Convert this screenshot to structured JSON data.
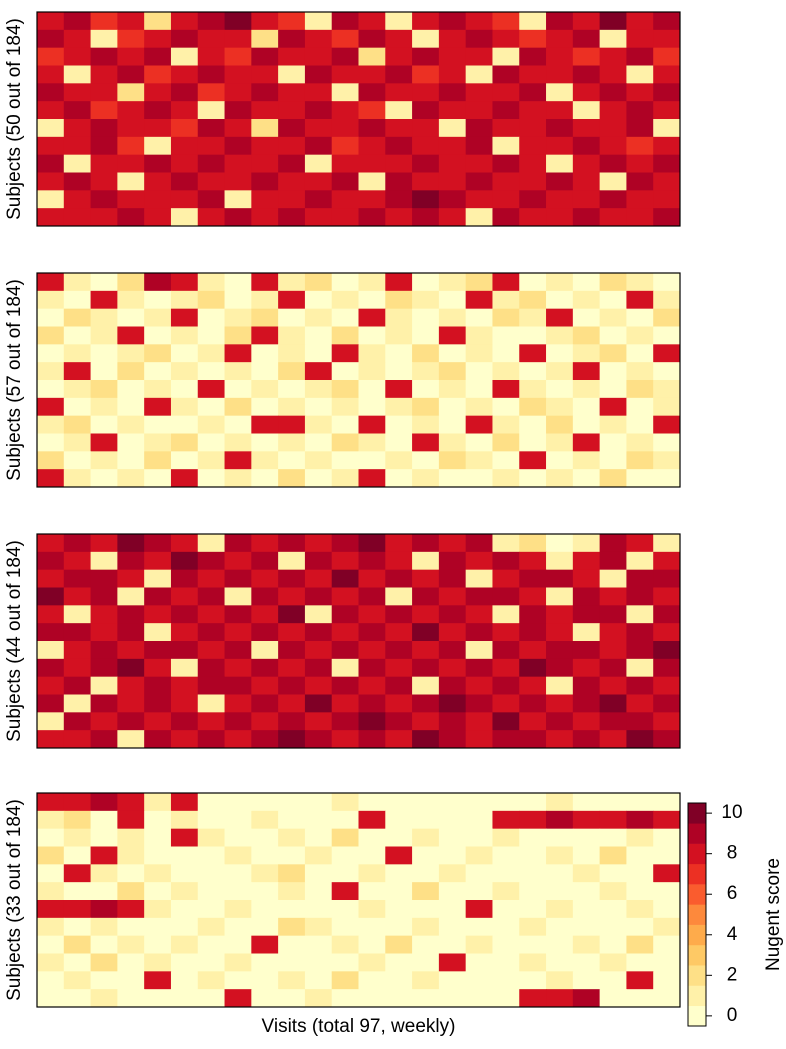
{
  "chart_data": [
    {
      "type": "heatmap",
      "ylabel": "Subjects (50 out of 184)",
      "values": [
        [
          8,
          9,
          7,
          8,
          2,
          8,
          9,
          10,
          8,
          7,
          1,
          9,
          8,
          1,
          8,
          9,
          8,
          7,
          1,
          9,
          8,
          10,
          8,
          9
        ],
        [
          9,
          8,
          1,
          7,
          8,
          9,
          8,
          8,
          2,
          9,
          8,
          7,
          9,
          8,
          1,
          8,
          9,
          8,
          7,
          8,
          9,
          1,
          8,
          8
        ],
        [
          7,
          8,
          9,
          8,
          9,
          1,
          8,
          7,
          9,
          8,
          8,
          9,
          2,
          8,
          9,
          8,
          8,
          1,
          9,
          8,
          7,
          8,
          9,
          7
        ],
        [
          8,
          1,
          8,
          9,
          7,
          8,
          9,
          8,
          8,
          1,
          9,
          8,
          8,
          9,
          7,
          8,
          1,
          9,
          8,
          8,
          9,
          8,
          1,
          8
        ],
        [
          9,
          8,
          8,
          2,
          8,
          9,
          7,
          8,
          9,
          8,
          8,
          1,
          9,
          8,
          8,
          9,
          8,
          8,
          9,
          1,
          8,
          9,
          8,
          9
        ],
        [
          8,
          9,
          7,
          8,
          9,
          8,
          1,
          9,
          8,
          8,
          9,
          8,
          7,
          1,
          9,
          8,
          8,
          9,
          8,
          8,
          1,
          8,
          9,
          8
        ],
        [
          1,
          8,
          9,
          8,
          8,
          7,
          9,
          8,
          2,
          9,
          8,
          8,
          9,
          8,
          8,
          1,
          9,
          8,
          8,
          9,
          8,
          8,
          9,
          1
        ],
        [
          8,
          8,
          9,
          7,
          1,
          8,
          8,
          9,
          8,
          8,
          9,
          7,
          8,
          9,
          8,
          8,
          9,
          1,
          8,
          8,
          9,
          8,
          7,
          8
        ],
        [
          9,
          1,
          8,
          8,
          9,
          8,
          9,
          8,
          8,
          9,
          1,
          8,
          8,
          8,
          9,
          8,
          8,
          9,
          8,
          1,
          8,
          9,
          8,
          9
        ],
        [
          8,
          9,
          8,
          1,
          8,
          9,
          8,
          8,
          9,
          8,
          8,
          9,
          1,
          9,
          8,
          8,
          9,
          8,
          8,
          9,
          8,
          1,
          9,
          8
        ],
        [
          1,
          8,
          9,
          8,
          8,
          8,
          9,
          1,
          8,
          8,
          9,
          8,
          8,
          9,
          10,
          9,
          8,
          8,
          9,
          8,
          8,
          9,
          8,
          8
        ],
        [
          8,
          8,
          8,
          9,
          8,
          1,
          8,
          9,
          8,
          9,
          8,
          8,
          9,
          8,
          9,
          8,
          1,
          9,
          8,
          8,
          9,
          8,
          8,
          9
        ]
      ]
    },
    {
      "type": "heatmap",
      "ylabel": "Subjects (57 out of 184)",
      "values": [
        [
          8,
          1,
          0,
          2,
          9,
          8,
          1,
          0,
          8,
          1,
          2,
          0,
          1,
          8,
          0,
          1,
          2,
          8,
          0,
          1,
          0,
          2,
          1,
          0
        ],
        [
          1,
          0,
          8,
          1,
          0,
          1,
          2,
          0,
          1,
          8,
          0,
          1,
          0,
          2,
          1,
          0,
          8,
          1,
          2,
          0,
          1,
          0,
          8,
          1
        ],
        [
          0,
          2,
          1,
          0,
          1,
          8,
          0,
          1,
          2,
          0,
          1,
          0,
          8,
          1,
          0,
          1,
          0,
          2,
          1,
          8,
          0,
          1,
          0,
          2
        ],
        [
          2,
          0,
          1,
          8,
          0,
          1,
          0,
          2,
          8,
          1,
          0,
          2,
          0,
          1,
          0,
          8,
          1,
          0,
          0,
          1,
          2,
          0,
          1,
          0
        ],
        [
          0,
          1,
          0,
          1,
          2,
          0,
          1,
          8,
          0,
          1,
          0,
          8,
          1,
          0,
          2,
          0,
          1,
          0,
          8,
          0,
          1,
          2,
          0,
          8
        ],
        [
          1,
          8,
          0,
          2,
          0,
          1,
          0,
          1,
          0,
          2,
          8,
          0,
          1,
          0,
          1,
          2,
          0,
          1,
          0,
          1,
          8,
          0,
          1,
          0
        ],
        [
          0,
          1,
          2,
          0,
          1,
          0,
          8,
          0,
          1,
          0,
          1,
          2,
          0,
          8,
          0,
          1,
          0,
          8,
          1,
          0,
          1,
          0,
          2,
          1
        ],
        [
          8,
          0,
          1,
          0,
          8,
          1,
          0,
          2,
          0,
          1,
          0,
          1,
          0,
          1,
          2,
          0,
          1,
          0,
          2,
          1,
          0,
          8,
          0,
          1
        ],
        [
          1,
          2,
          0,
          1,
          0,
          0,
          1,
          0,
          8,
          8,
          1,
          0,
          8,
          0,
          1,
          0,
          8,
          1,
          0,
          2,
          0,
          1,
          0,
          8
        ],
        [
          0,
          1,
          8,
          0,
          1,
          2,
          0,
          1,
          0,
          1,
          0,
          2,
          1,
          0,
          8,
          1,
          0,
          2,
          0,
          1,
          8,
          0,
          1,
          0
        ],
        [
          2,
          0,
          1,
          0,
          2,
          0,
          1,
          8,
          1,
          0,
          1,
          0,
          0,
          1,
          0,
          2,
          1,
          0,
          8,
          0,
          1,
          0,
          2,
          1
        ],
        [
          8,
          1,
          0,
          1,
          0,
          8,
          0,
          1,
          0,
          2,
          0,
          1,
          8,
          0,
          1,
          0,
          0,
          1,
          0,
          1,
          0,
          2,
          0,
          0
        ]
      ]
    },
    {
      "type": "heatmap",
      "ylabel": "Subjects (44 out of 184)",
      "values": [
        [
          8,
          9,
          8,
          10,
          9,
          8,
          1,
          9,
          8,
          9,
          8,
          9,
          10,
          8,
          9,
          8,
          9,
          1,
          2,
          0,
          1,
          9,
          8,
          1
        ],
        [
          9,
          8,
          1,
          9,
          8,
          10,
          9,
          8,
          9,
          1,
          9,
          8,
          9,
          8,
          1,
          9,
          8,
          9,
          8,
          1,
          8,
          9,
          1,
          8
        ],
        [
          8,
          9,
          9,
          8,
          1,
          9,
          8,
          9,
          8,
          9,
          8,
          10,
          8,
          9,
          8,
          9,
          1,
          8,
          9,
          9,
          8,
          1,
          9,
          9
        ],
        [
          10,
          8,
          9,
          1,
          9,
          8,
          9,
          1,
          9,
          8,
          9,
          8,
          9,
          1,
          9,
          8,
          9,
          9,
          8,
          1,
          9,
          8,
          9,
          8
        ],
        [
          8,
          1,
          8,
          9,
          8,
          9,
          8,
          9,
          8,
          10,
          1,
          9,
          8,
          9,
          8,
          9,
          8,
          1,
          9,
          8,
          9,
          9,
          1,
          9
        ],
        [
          9,
          9,
          8,
          9,
          1,
          8,
          9,
          8,
          9,
          8,
          9,
          8,
          9,
          8,
          10,
          8,
          9,
          8,
          9,
          8,
          1,
          8,
          9,
          8
        ],
        [
          1,
          8,
          9,
          8,
          9,
          9,
          8,
          9,
          1,
          9,
          8,
          9,
          8,
          9,
          8,
          9,
          1,
          9,
          8,
          9,
          9,
          8,
          9,
          10
        ],
        [
          9,
          8,
          9,
          10,
          8,
          1,
          9,
          8,
          9,
          8,
          9,
          1,
          9,
          8,
          9,
          8,
          9,
          8,
          10,
          9,
          8,
          9,
          1,
          9
        ],
        [
          8,
          9,
          1,
          8,
          9,
          8,
          9,
          9,
          8,
          9,
          8,
          9,
          8,
          9,
          1,
          9,
          8,
          9,
          8,
          1,
          9,
          8,
          9,
          8
        ],
        [
          9,
          1,
          9,
          8,
          9,
          8,
          1,
          8,
          9,
          8,
          10,
          8,
          9,
          8,
          9,
          10,
          9,
          8,
          9,
          8,
          9,
          10,
          8,
          9
        ],
        [
          1,
          9,
          8,
          9,
          8,
          9,
          8,
          9,
          8,
          9,
          8,
          9,
          10,
          9,
          8,
          9,
          8,
          10,
          8,
          9,
          8,
          9,
          9,
          8
        ],
        [
          8,
          8,
          9,
          1,
          9,
          8,
          9,
          8,
          9,
          10,
          9,
          8,
          9,
          8,
          10,
          9,
          8,
          9,
          9,
          8,
          9,
          8,
          10,
          9
        ]
      ]
    },
    {
      "type": "heatmap",
      "ylabel": "Subjects (33 out of 184)",
      "xlabel": "Visits (total 97, weekly)",
      "values": [
        [
          8,
          8,
          9,
          8,
          1,
          8,
          0,
          0,
          0,
          0,
          0,
          1,
          0,
          0,
          0,
          0,
          0,
          0,
          0,
          1,
          0,
          0,
          0,
          0
        ],
        [
          1,
          2,
          0,
          8,
          0,
          1,
          0,
          0,
          1,
          0,
          0,
          0,
          8,
          0,
          0,
          0,
          0,
          8,
          8,
          9,
          8,
          8,
          9,
          8
        ],
        [
          0,
          1,
          0,
          1,
          0,
          8,
          1,
          0,
          0,
          1,
          0,
          2,
          0,
          0,
          1,
          0,
          0,
          1,
          0,
          0,
          0,
          0,
          1,
          0
        ],
        [
          2,
          0,
          8,
          1,
          0,
          0,
          0,
          1,
          0,
          0,
          1,
          0,
          0,
          8,
          0,
          0,
          1,
          0,
          0,
          1,
          0,
          2,
          0,
          0
        ],
        [
          0,
          8,
          1,
          0,
          1,
          0,
          0,
          0,
          1,
          2,
          0,
          0,
          1,
          0,
          0,
          1,
          0,
          0,
          0,
          0,
          1,
          0,
          0,
          8
        ],
        [
          1,
          0,
          0,
          2,
          0,
          1,
          0,
          0,
          0,
          1,
          0,
          8,
          0,
          0,
          2,
          0,
          0,
          1,
          0,
          0,
          0,
          1,
          0,
          0
        ],
        [
          8,
          8,
          9,
          8,
          1,
          0,
          0,
          1,
          0,
          0,
          0,
          0,
          1,
          0,
          0,
          0,
          8,
          0,
          0,
          1,
          0,
          0,
          1,
          0
        ],
        [
          1,
          0,
          1,
          0,
          0,
          0,
          1,
          0,
          0,
          2,
          1,
          0,
          0,
          0,
          1,
          0,
          0,
          0,
          1,
          0,
          0,
          0,
          0,
          1
        ],
        [
          0,
          2,
          0,
          1,
          0,
          1,
          0,
          0,
          8,
          0,
          0,
          1,
          0,
          2,
          0,
          0,
          1,
          0,
          0,
          0,
          1,
          0,
          2,
          0
        ],
        [
          1,
          0,
          2,
          0,
          1,
          0,
          0,
          1,
          0,
          0,
          0,
          0,
          1,
          0,
          0,
          8,
          0,
          0,
          1,
          0,
          0,
          1,
          0,
          0
        ],
        [
          0,
          1,
          0,
          0,
          8,
          0,
          1,
          0,
          0,
          1,
          0,
          2,
          0,
          0,
          1,
          0,
          0,
          0,
          0,
          1,
          0,
          0,
          8,
          0
        ],
        [
          0,
          0,
          1,
          0,
          0,
          0,
          0,
          8,
          0,
          0,
          1,
          0,
          0,
          0,
          0,
          0,
          0,
          0,
          8,
          8,
          9,
          0,
          0,
          0
        ]
      ],
      "colorbar": {
        "label": "Nugent score",
        "lim": [
          -0.5,
          10.5
        ],
        "ticks": [
          0,
          2,
          4,
          6,
          8,
          10
        ],
        "colors": [
          "#ffffcc",
          "#fff1a9",
          "#fee087",
          "#fec965",
          "#feab4b",
          "#fd893c",
          "#fa5c2e",
          "#ec3023",
          "#d31121",
          "#af0225",
          "#800026"
        ]
      }
    }
  ]
}
